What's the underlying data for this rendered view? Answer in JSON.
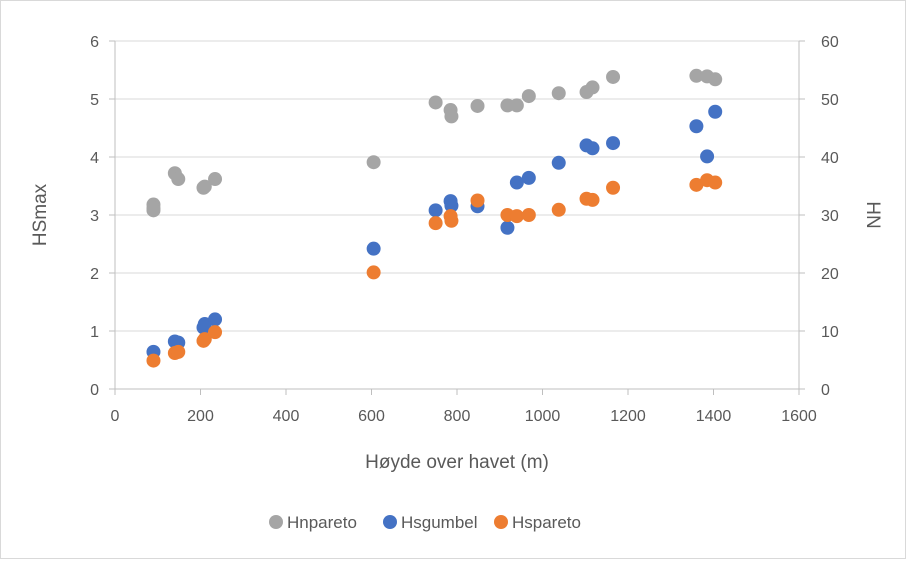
{
  "chart_data": {
    "type": "scatter",
    "title": "",
    "xlabel": "Høyde over havet (m)",
    "ylabel": "HSmax",
    "y2label": "HN",
    "xlim": [
      0,
      1600
    ],
    "ylim": [
      0,
      6
    ],
    "y2lim": [
      0,
      60
    ],
    "x_ticks": [
      "0",
      "200",
      "400",
      "600",
      "800",
      "1000",
      "1200",
      "1400",
      "1600"
    ],
    "y_ticks": [
      "0",
      "1",
      "2",
      "3",
      "4",
      "5",
      "6"
    ],
    "y2_ticks": [
      "0",
      "10",
      "20",
      "30",
      "40",
      "50",
      "60"
    ],
    "grid": "horizontal",
    "legend_position": "bottom",
    "series": [
      {
        "name": "Hnpareto",
        "axis": "right",
        "color": "#a5a5a5",
        "x": [
          90,
          90,
          90,
          140,
          148,
          207,
          210,
          234,
          605,
          750,
          785,
          787,
          848,
          918,
          940,
          968,
          1038,
          1103,
          1117,
          1165,
          1360,
          1385,
          1404
        ],
        "y": [
          31.8,
          31.2,
          30.8,
          37.2,
          36.2,
          34.7,
          34.9,
          36.2,
          39.1,
          49.4,
          48.1,
          47.0,
          48.8,
          48.9,
          48.9,
          50.5,
          51.0,
          51.2,
          52.0,
          53.8,
          54.0,
          53.9,
          53.4
        ]
      },
      {
        "name": "Hsgumbel",
        "axis": "left",
        "color": "#4472c4",
        "x": [
          90,
          140,
          148,
          207,
          210,
          234,
          605,
          750,
          785,
          787,
          848,
          918,
          940,
          968,
          1038,
          1103,
          1117,
          1165,
          1360,
          1385,
          1404
        ],
        "y": [
          0.64,
          0.82,
          0.8,
          1.06,
          1.12,
          1.2,
          2.42,
          3.08,
          3.24,
          3.16,
          3.15,
          2.78,
          3.56,
          3.64,
          3.9,
          4.2,
          4.15,
          4.24,
          4.53,
          4.01,
          4.78
        ]
      },
      {
        "name": "Hspareto",
        "axis": "left",
        "color": "#ed7d31",
        "x": [
          90,
          140,
          148,
          207,
          210,
          234,
          605,
          750,
          785,
          787,
          848,
          918,
          940,
          968,
          1038,
          1103,
          1117,
          1165,
          1360,
          1385,
          1404
        ],
        "y": [
          0.49,
          0.62,
          0.64,
          0.83,
          0.86,
          0.98,
          2.01,
          2.86,
          2.98,
          2.9,
          3.25,
          3.0,
          2.98,
          3.0,
          3.09,
          3.28,
          3.26,
          3.47,
          3.52,
          3.6,
          3.56
        ]
      }
    ]
  }
}
